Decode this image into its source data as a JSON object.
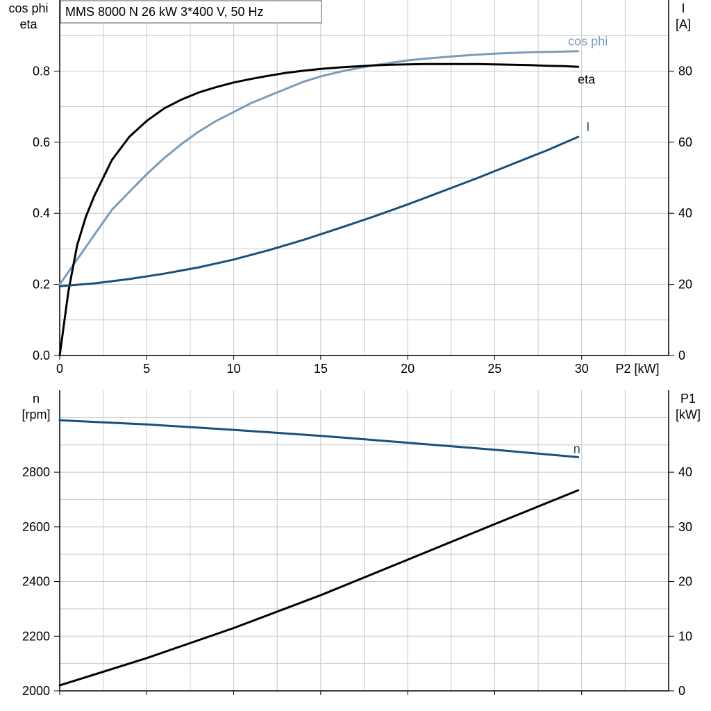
{
  "chart_data": [
    {
      "type": "line",
      "title": "MMS 8000 N   26 kW   3*400 V, 50 Hz",
      "xlabel": "P2 [kW]",
      "ylabel_left": [
        "cos phi",
        "eta"
      ],
      "ylabel_right": [
        "I",
        "[A]"
      ],
      "xlim": [
        0,
        35
      ],
      "xticks": [
        0,
        5,
        10,
        15,
        20,
        25,
        30
      ],
      "ylim_left": [
        0,
        1.0
      ],
      "yticks_left": [
        0.0,
        0.2,
        0.4,
        0.6,
        0.8
      ],
      "ytick_labels_left": [
        "0.0",
        "0.2",
        "0.4",
        "0.6",
        "0.8"
      ],
      "ylim_right": [
        0,
        100
      ],
      "yticks_right": [
        0,
        20,
        40,
        60,
        80
      ],
      "grid": true,
      "series": [
        {
          "name": "cos phi",
          "axis": "left",
          "color": "#7a9cbc",
          "label": "cos phi",
          "x": [
            0,
            1,
            2,
            3,
            4,
            5,
            6,
            7,
            8,
            9,
            10,
            11,
            12,
            13,
            14,
            15,
            16,
            17,
            18,
            19,
            20,
            21,
            22,
            23,
            24,
            25,
            26,
            27,
            28,
            29,
            29.8
          ],
          "y": [
            0.2,
            0.27,
            0.34,
            0.41,
            0.46,
            0.51,
            0.555,
            0.595,
            0.63,
            0.66,
            0.685,
            0.71,
            0.73,
            0.75,
            0.77,
            0.785,
            0.797,
            0.807,
            0.816,
            0.823,
            0.83,
            0.835,
            0.839,
            0.843,
            0.846,
            0.849,
            0.851,
            0.853,
            0.854,
            0.855,
            0.856
          ]
        },
        {
          "name": "eta",
          "axis": "left",
          "color": "#000000",
          "label": "eta",
          "x": [
            0,
            0.5,
            1,
            1.5,
            2,
            3,
            4,
            5,
            6,
            7,
            8,
            9,
            10,
            11,
            12,
            13,
            14,
            15,
            16,
            17,
            18,
            19,
            20,
            21,
            22,
            23,
            24,
            25,
            26,
            27,
            28,
            29,
            29.8
          ],
          "y": [
            0.0,
            0.18,
            0.31,
            0.39,
            0.45,
            0.55,
            0.615,
            0.66,
            0.695,
            0.72,
            0.74,
            0.755,
            0.768,
            0.778,
            0.787,
            0.795,
            0.801,
            0.806,
            0.81,
            0.813,
            0.816,
            0.818,
            0.819,
            0.82,
            0.82,
            0.82,
            0.82,
            0.819,
            0.818,
            0.817,
            0.815,
            0.814,
            0.812
          ]
        },
        {
          "name": "I",
          "axis": "right",
          "color": "#1a4f7a",
          "label": "I",
          "x": [
            0,
            2,
            4,
            6,
            8,
            10,
            12,
            14,
            16,
            18,
            20,
            22,
            24,
            26,
            28,
            29.8
          ],
          "y": [
            19.5,
            20.3,
            21.5,
            23.0,
            24.8,
            27.0,
            29.6,
            32.5,
            35.7,
            39.0,
            42.5,
            46.2,
            49.9,
            53.8,
            57.7,
            61.5
          ]
        }
      ]
    },
    {
      "type": "line",
      "xlim": [
        0,
        35
      ],
      "xticks": [
        0,
        5,
        10,
        15,
        20,
        25,
        30
      ],
      "ylabel_left": [
        "n",
        "[rpm]"
      ],
      "ylabel_right": [
        "P1",
        "[kW]"
      ],
      "ylim_left": [
        2000,
        3100
      ],
      "yticks_left": [
        2000,
        2200,
        2400,
        2600,
        2800
      ],
      "ylim_right": [
        0,
        55
      ],
      "yticks_right": [
        0,
        10,
        20,
        30,
        40
      ],
      "grid": true,
      "series": [
        {
          "name": "n",
          "axis": "left",
          "color": "#1a4f7a",
          "label": "n",
          "x": [
            0,
            5,
            10,
            15,
            20,
            25,
            29.8
          ],
          "y": [
            2990,
            2975,
            2955,
            2933,
            2908,
            2882,
            2855
          ]
        },
        {
          "name": "P1",
          "axis": "right",
          "color": "#000000",
          "x": [
            0,
            5,
            10,
            15,
            20,
            25,
            29.8
          ],
          "y": [
            1.0,
            6.0,
            11.5,
            17.5,
            24.0,
            30.5,
            36.7
          ]
        }
      ]
    }
  ]
}
